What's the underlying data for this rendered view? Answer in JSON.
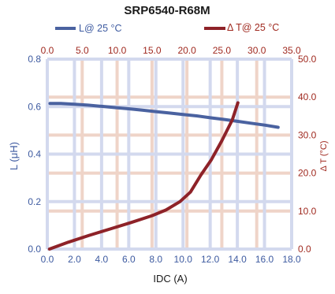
{
  "chart_data": {
    "type": "line",
    "title": "SRP6540-R68M",
    "xlabel": "IDC (A)",
    "ylabel_left": "L (μH)",
    "ylabel_right": "Δ T (°C)",
    "x_bottom": {
      "range": [
        0,
        18
      ],
      "ticks": [
        "0.0",
        "2.0",
        "4.0",
        "6.0",
        "8.0",
        "10.0",
        "12.0",
        "14.0",
        "16.0",
        "18.0"
      ]
    },
    "x_top": {
      "range": [
        0,
        35
      ],
      "ticks": [
        "0.0",
        "5.0",
        "10.0",
        "15.0",
        "20.0",
        "25.0",
        "30.0",
        "35.0"
      ]
    },
    "y_left": {
      "range": [
        0,
        0.8
      ],
      "ticks": [
        "0.0",
        "0.2",
        "0.4",
        "0.6",
        "0.8"
      ]
    },
    "y_right": {
      "range": [
        0,
        50
      ],
      "ticks": [
        "0.0",
        "10.0",
        "20.0",
        "30.0",
        "40.0",
        "50.0"
      ]
    },
    "grid": true,
    "legend_position": "top",
    "series": [
      {
        "name": "L@ 25 °C",
        "axis": "bottom-left",
        "color": "#4a62a0",
        "x": [
          0.2,
          1,
          2,
          3,
          4,
          5,
          6,
          7,
          8,
          9,
          10,
          11,
          12,
          13,
          14,
          15,
          16,
          17
        ],
        "y": [
          0.613,
          0.613,
          0.61,
          0.606,
          0.601,
          0.596,
          0.591,
          0.585,
          0.579,
          0.573,
          0.567,
          0.561,
          0.553,
          0.546,
          0.538,
          0.53,
          0.522,
          0.513
        ]
      },
      {
        "name": "Δ T@ 25 °C",
        "axis": "top-right",
        "color": "#8e2228",
        "x": [
          0.3,
          3,
          6,
          9,
          12,
          15,
          17,
          19,
          20.5,
          22,
          23.5,
          25,
          26.5,
          27.3
        ],
        "y": [
          0,
          1.8,
          3.6,
          5.3,
          7.0,
          8.8,
          10.3,
          12.5,
          15.0,
          19.5,
          23.5,
          28.5,
          34.0,
          38.5
        ]
      }
    ],
    "colors": {
      "left_axis_text": "#3d5aa0",
      "right_axis_text": "#a02a20",
      "blue_grid": "#d3d9ee",
      "red_grid": "#efd4c8"
    }
  }
}
